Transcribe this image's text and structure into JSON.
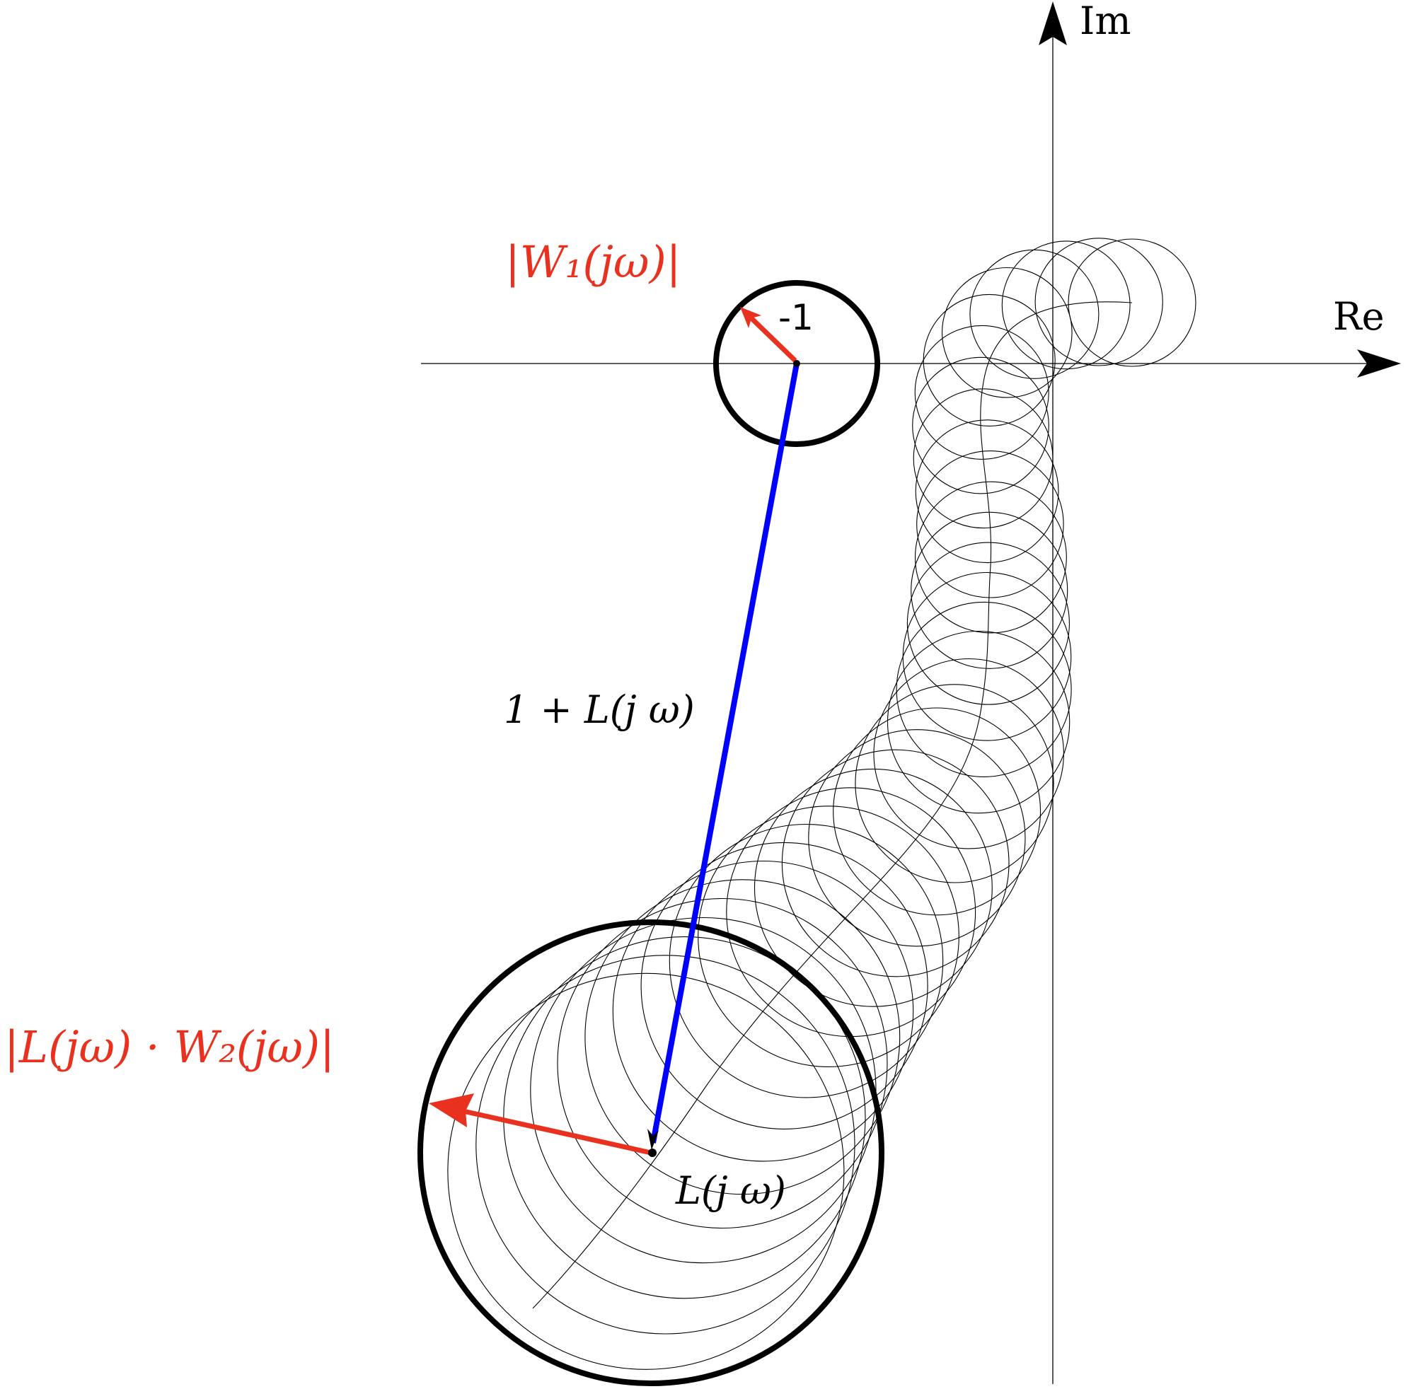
{
  "axes": {
    "x_label": "Re",
    "y_label": "Im"
  },
  "labels": {
    "minus_one": "-1",
    "one_plus_L": "1 + L(j ω)",
    "L": "L(j ω)",
    "W1": "|W₁(jω)|",
    "LW2": "|L(jω) · W₂(jω)|"
  },
  "colors": {
    "axes": "#000000",
    "vector_1_plus_L": "#0000ff",
    "radius_vectors": "#e8321f",
    "label_red": "#e8321f"
  },
  "icons": {
    "axis_arrowheads": "arrow-head-icon"
  }
}
